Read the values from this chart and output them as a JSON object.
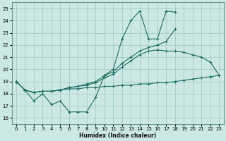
{
  "xlabel": "Humidex (Indice chaleur)",
  "bg_color": "#cce8e4",
  "grid_color": "#aacfcb",
  "line_color": "#1a6e65",
  "xlim": [
    -0.5,
    23.5
  ],
  "ylim": [
    15.5,
    25.5
  ],
  "yticks": [
    16,
    17,
    18,
    19,
    20,
    21,
    22,
    23,
    24,
    25
  ],
  "xticks": [
    0,
    1,
    2,
    3,
    4,
    5,
    6,
    7,
    8,
    9,
    10,
    11,
    12,
    13,
    14,
    15,
    16,
    17,
    18,
    19,
    20,
    21,
    22,
    23
  ],
  "series": [
    [
      19.0,
      18.3,
      17.4,
      18.0,
      17.1,
      17.4,
      16.5,
      16.5,
      16.5,
      17.7,
      19.5,
      20.0,
      22.5,
      24.0,
      24.8,
      22.5,
      22.5,
      24.8,
      24.7,
      null,
      null,
      null,
      null,
      null
    ],
    [
      19.0,
      18.3,
      18.1,
      18.2,
      18.2,
      18.3,
      18.4,
      18.4,
      18.5,
      18.5,
      18.6,
      18.6,
      18.7,
      18.7,
      18.8,
      18.8,
      18.9,
      18.9,
      19.0,
      19.1,
      19.2,
      19.3,
      19.4,
      19.5
    ],
    [
      19.0,
      18.3,
      18.1,
      18.2,
      18.2,
      18.3,
      18.5,
      18.6,
      18.8,
      19.0,
      19.5,
      19.8,
      20.5,
      21.0,
      21.5,
      21.8,
      22.0,
      22.3,
      23.3,
      null,
      null,
      null,
      null,
      null
    ],
    [
      19.0,
      18.3,
      18.1,
      18.2,
      18.2,
      18.3,
      18.5,
      18.6,
      18.7,
      18.9,
      19.3,
      19.6,
      20.2,
      20.7,
      21.2,
      21.5,
      21.6,
      21.5,
      21.5,
      21.4,
      21.2,
      21.0,
      20.6,
      19.5
    ]
  ]
}
